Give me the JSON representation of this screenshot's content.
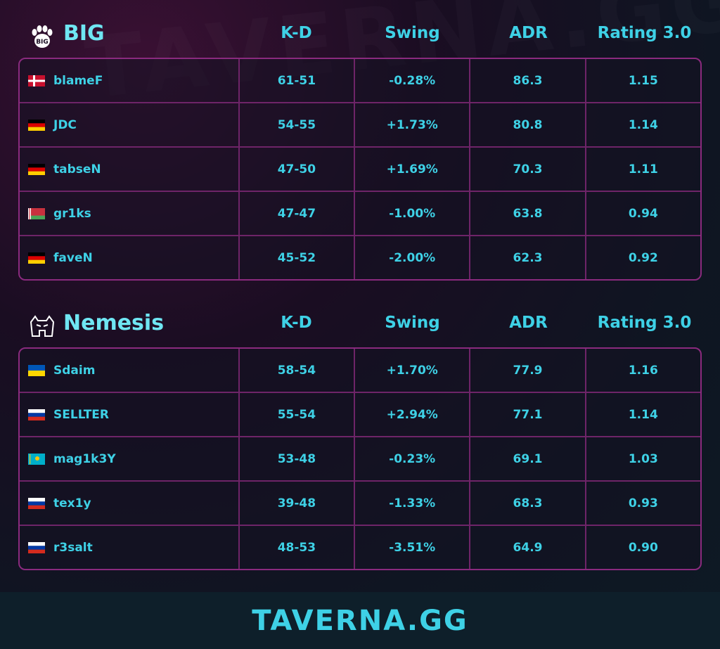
{
  "watermark": "TAVERNA.GG",
  "columns": {
    "kd": "K-D",
    "swing": "Swing",
    "adr": "ADR",
    "rating": "Rating 3.0"
  },
  "teams": [
    {
      "name": "BIG",
      "players": [
        {
          "flag": "dk",
          "name": "blameF",
          "kd": "61-51",
          "swing": "-0.28%",
          "adr": "86.3",
          "rating": "1.15"
        },
        {
          "flag": "de",
          "name": "JDC",
          "kd": "54-55",
          "swing": "+1.73%",
          "adr": "80.8",
          "rating": "1.14"
        },
        {
          "flag": "de",
          "name": "tabseN",
          "kd": "47-50",
          "swing": "+1.69%",
          "adr": "70.3",
          "rating": "1.11"
        },
        {
          "flag": "by",
          "name": "gr1ks",
          "kd": "47-47",
          "swing": "-1.00%",
          "adr": "63.8",
          "rating": "0.94"
        },
        {
          "flag": "de",
          "name": "faveN",
          "kd": "45-52",
          "swing": "-2.00%",
          "adr": "62.3",
          "rating": "0.92"
        }
      ]
    },
    {
      "name": "Nemesis",
      "players": [
        {
          "flag": "ua",
          "name": "Sdaim",
          "kd": "58-54",
          "swing": "+1.70%",
          "adr": "77.9",
          "rating": "1.16"
        },
        {
          "flag": "ru",
          "name": "SELLTER",
          "kd": "55-54",
          "swing": "+2.94%",
          "adr": "77.1",
          "rating": "1.14"
        },
        {
          "flag": "kz",
          "name": "mag1k3Y",
          "kd": "53-48",
          "swing": "-0.23%",
          "adr": "69.1",
          "rating": "1.03"
        },
        {
          "flag": "ru",
          "name": "tex1y",
          "kd": "39-48",
          "swing": "-1.33%",
          "adr": "68.3",
          "rating": "0.93"
        },
        {
          "flag": "ru",
          "name": "r3salt",
          "kd": "48-53",
          "swing": "-3.51%",
          "adr": "64.9",
          "rating": "0.90"
        }
      ]
    }
  ],
  "footer": {
    "brand": "TAVERNA.GG"
  },
  "colors": {
    "accent": "#3ed1e6",
    "border": "#8a2a7e",
    "footer_bg": "#0e1f2a"
  }
}
